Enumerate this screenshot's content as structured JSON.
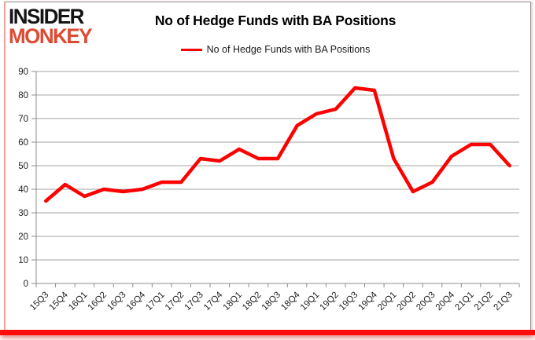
{
  "logo": {
    "line1": "INSIDER",
    "line2": "MONKEY"
  },
  "title": "No of Hedge Funds with BA Positions",
  "legend": {
    "label": "No of Hedge Funds with BA Positions"
  },
  "colors": {
    "line": "#fe0000",
    "grid": "#a3a3a3",
    "axis": "#8c8c8c",
    "tick_text": "#1f1f1f",
    "logo_black": "#141414",
    "logo_red": "#dd4b33",
    "bottom_bar": "#fe0b0b"
  },
  "chart_data": {
    "type": "line",
    "title": "No of Hedge Funds with BA Positions",
    "categories": [
      "15Q3",
      "15Q4",
      "16Q1",
      "16Q2",
      "16Q3",
      "16Q4",
      "17Q1",
      "17Q2",
      "17Q3",
      "17Q4",
      "18Q1",
      "18Q2",
      "18Q3",
      "18Q4",
      "19Q1",
      "19Q2",
      "19Q3",
      "19Q4",
      "20Q1",
      "20Q2",
      "20Q3",
      "20Q4",
      "21Q1",
      "21Q2",
      "21Q3"
    ],
    "series": [
      {
        "name": "No of Hedge Funds with BA Positions",
        "color": "#fe0000",
        "values": [
          35,
          42,
          37,
          40,
          39,
          40,
          43,
          43,
          53,
          52,
          57,
          53,
          53,
          67,
          72,
          74,
          83,
          82,
          53,
          39,
          43,
          54,
          59,
          59,
          50
        ]
      }
    ],
    "xlabel": "",
    "ylabel": "",
    "ylim": [
      0,
      90
    ],
    "ytick_interval": 10,
    "yticks": [
      0,
      10,
      20,
      30,
      40,
      50,
      60,
      70,
      80,
      90
    ],
    "grid": true,
    "legend_position": "top-center",
    "x_label_rotation": -45
  }
}
